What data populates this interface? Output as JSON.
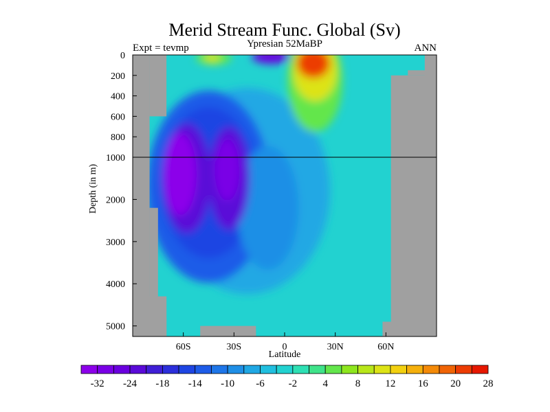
{
  "chart_data": {
    "type": "heatmap",
    "title": "Merid Stream Func. Global (Sv)",
    "left_string": "Expt = tevmp",
    "center_string": "Ypresian  52MaBP",
    "right_string": "ANN",
    "xlabel": "Latitude",
    "ylabel": "Depth (in m)",
    "x_ticks": [
      "60S",
      "30S",
      "0",
      "30N",
      "60N"
    ],
    "x_tick_values": [
      -60,
      -30,
      0,
      30,
      60
    ],
    "y_ticks": [
      "0",
      "200",
      "400",
      "600",
      "800",
      "1000",
      "2000",
      "3000",
      "4000",
      "5000"
    ],
    "y_tick_values": [
      0,
      200,
      400,
      600,
      800,
      1000,
      2000,
      3000,
      4000,
      5000
    ],
    "xlim": [
      -90,
      90
    ],
    "ylim": [
      0,
      5250
    ],
    "y_scale": "piecewise linear: 0-1000 m stretched, 1000-5250 m compressed",
    "reference_line_depth": 1000,
    "land_mask_color": "#a0a0a0",
    "colorbar": {
      "labels": [
        "-32",
        "-24",
        "-18",
        "-14",
        "-10",
        "-6",
        "-2",
        "4",
        "8",
        "12",
        "16",
        "20",
        "28"
      ],
      "colors": [
        "#8c00ea",
        "#7a00e6",
        "#6a00df",
        "#5a0ad8",
        "#3f1fd6",
        "#2c2fdb",
        "#1e45e3",
        "#1e5ce8",
        "#1e76e8",
        "#1f8fe6",
        "#20a8e4",
        "#21bfdf",
        "#22d2d0",
        "#2ee0b4",
        "#3fe38a",
        "#63e64c",
        "#8ee61e",
        "#b8e61a",
        "#dde316",
        "#f2d010",
        "#f5b00c",
        "#f48a08",
        "#f06405",
        "#ec3c03",
        "#e61800"
      ],
      "position": "bottom"
    },
    "cells": [
      {
        "lat": -60,
        "depth": 1500,
        "value": -32
      },
      {
        "lat": -35,
        "depth": 1500,
        "value": -30
      },
      {
        "lat": -50,
        "depth": 2000,
        "value": -24
      },
      {
        "lat": -25,
        "depth": 2400,
        "value": -18
      },
      {
        "lat": -10,
        "depth": 3000,
        "value": -10
      },
      {
        "lat": -42,
        "depth": 30,
        "value": 8
      },
      {
        "lat": -8,
        "depth": 20,
        "value": -28
      },
      {
        "lat": 20,
        "depth": 100,
        "value": 28
      },
      {
        "lat": 60,
        "depth": 3000,
        "value": -2
      }
    ]
  }
}
